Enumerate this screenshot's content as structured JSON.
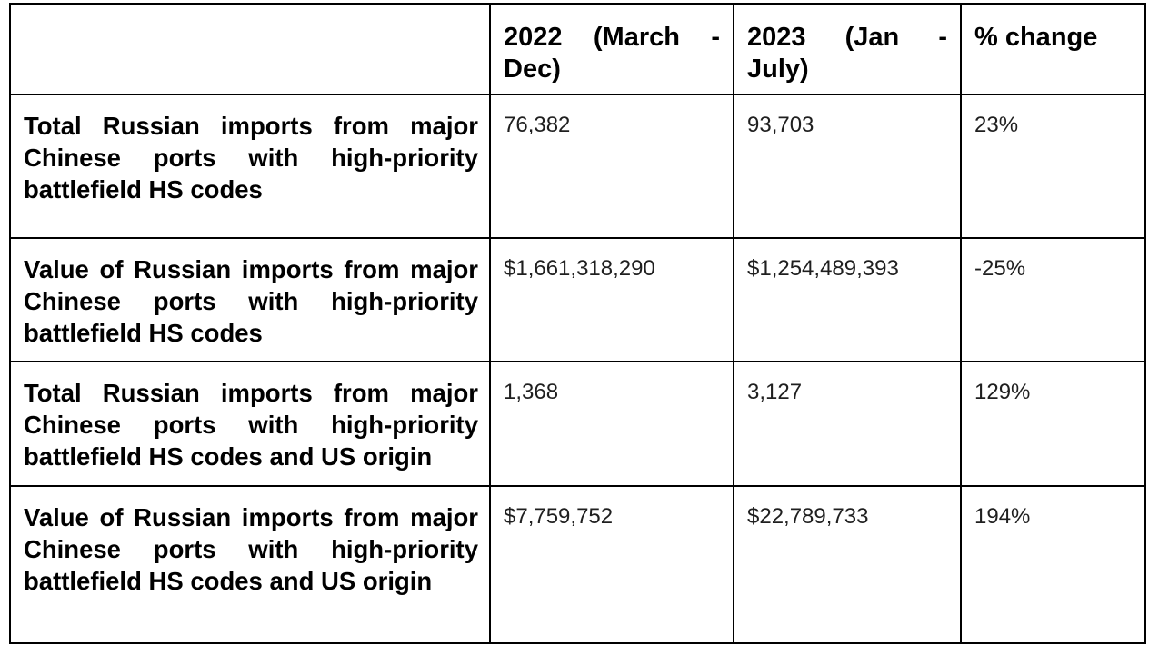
{
  "table": {
    "headers": [
      "",
      "2022 (March - Dec)",
      "2023 (Jan - July)",
      "% change"
    ],
    "rows": [
      {
        "label": "Total Russian imports from major Chinese ports with high-priority battlefield HS codes",
        "v2022": "76,382",
        "v2023": "93,703",
        "change": "23%"
      },
      {
        "label": "Value of Russian imports from major Chinese ports with high-priority battlefield HS codes",
        "v2022": "$1,661,318,290",
        "v2023": "$1,254,489,393",
        "change": "-25%"
      },
      {
        "label": "Total Russian imports from major Chinese ports with high-priority battlefield HS codes and US origin",
        "v2022": "1,368",
        "v2023": "3,127",
        "change": "129%"
      },
      {
        "label": "Value of Russian imports from major Chinese ports with high-priority battlefield HS codes and US origin",
        "v2022": "$7,759,752",
        "v2023": "$22,789,733",
        "change": "194%"
      }
    ]
  }
}
